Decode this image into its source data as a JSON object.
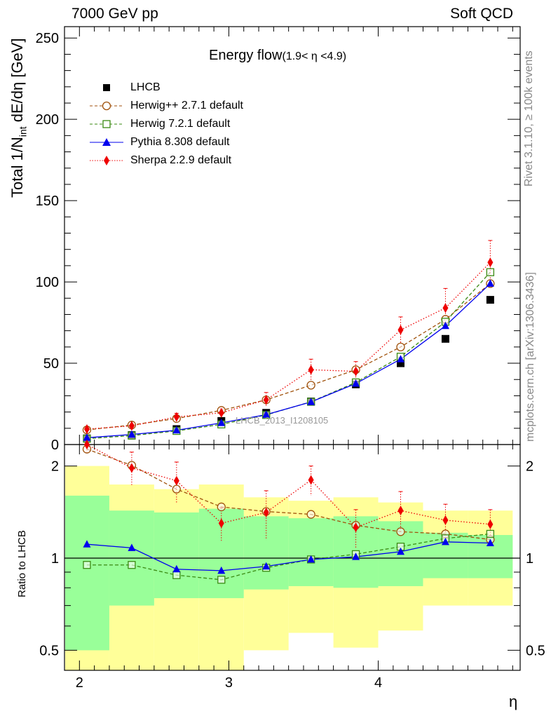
{
  "header": {
    "left": "7000 GeV pp",
    "right": "Soft QCD"
  },
  "side_text": {
    "rivet": "Rivet 3.1.10, ≥ 100k events",
    "mcplots": "mcplots.cern.ch [arXiv:1306.3436]"
  },
  "analysis_id": "LHCB_2013_I1208105",
  "colors": {
    "lhcb": "#000000",
    "herwigpp": "#a0520c",
    "herwig7": "#3a8a12",
    "pythia": "#0000ee",
    "sherpa": "#ee0000",
    "band_inner": "#99ff99",
    "band_outer": "#ffff99"
  },
  "chart_data": [
    {
      "type": "scatter",
      "title": "Energy flow",
      "title_suffix": "(1.9< η <4.9)",
      "ylabel": "Total 1/N_int dE/dη [GeV]",
      "xlabel": "η",
      "xlim": [
        1.9,
        4.95
      ],
      "ylim": [
        0,
        257
      ],
      "yticks": [
        0,
        50,
        100,
        150,
        200,
        250
      ],
      "xticks": [
        2,
        3,
        4
      ],
      "legend_position": "top-left",
      "x": [
        2.05,
        2.35,
        2.65,
        2.95,
        3.25,
        3.55,
        3.85,
        4.15,
        4.45,
        4.75
      ],
      "series": [
        {
          "name": "LHCB",
          "key": "lhcb",
          "values": [
            3.8,
            5.8,
            9.5,
            14.5,
            19.5,
            26.5,
            37,
            50,
            65,
            89
          ]
        },
        {
          "name": "Herwig++ 2.7.1 default",
          "key": "herwigpp",
          "values": [
            9,
            12,
            16,
            21,
            27.5,
            36.5,
            46,
            60,
            77,
            99
          ]
        },
        {
          "name": "Herwig 7.2.1 default",
          "key": "herwig7",
          "values": [
            3.6,
            5.5,
            8.4,
            12.4,
            18.2,
            26.3,
            38.2,
            54,
            75.5,
            106
          ]
        },
        {
          "name": "Pythia 8.308 default",
          "key": "pythia",
          "values": [
            4.2,
            6.2,
            8.8,
            13.3,
            18.4,
            26.2,
            37.5,
            52.5,
            73,
            99
          ]
        },
        {
          "name": "Sherpa 2.2.9 default",
          "key": "sherpa",
          "values": [
            9.5,
            11.5,
            17,
            19.5,
            27.5,
            46,
            45,
            70.5,
            84,
            112
          ],
          "errors": [
            0.6,
            1.2,
            2.2,
            2.5,
            4.5,
            6.5,
            6.0,
            8.0,
            12.0,
            13.5
          ]
        }
      ]
    },
    {
      "type": "scatter",
      "ylabel": "Ratio to LHCB",
      "xlabel": "η",
      "log_scale_y": true,
      "ylim": [
        0.43,
        2.35
      ],
      "yticks": [
        0.5,
        1,
        2
      ],
      "reference": 1,
      "bin_edges": [
        1.9,
        2.2,
        2.5,
        2.8,
        3.1,
        3.4,
        3.7,
        4.0,
        4.3,
        4.6,
        4.9
      ],
      "band_inner": [
        [
          0.5,
          1.6
        ],
        [
          0.7,
          1.43
        ],
        [
          0.74,
          1.41
        ],
        [
          0.74,
          1.45
        ],
        [
          0.79,
          1.37
        ],
        [
          0.81,
          1.35
        ],
        [
          0.8,
          1.37
        ],
        [
          0.81,
          1.32
        ],
        [
          0.86,
          1.21
        ],
        [
          0.86,
          1.19
        ]
      ],
      "band_outer": [
        [
          0.4,
          2.0
        ],
        [
          0.4,
          1.74
        ],
        [
          0.4,
          1.68
        ],
        [
          0.4,
          1.74
        ],
        [
          0.5,
          1.58
        ],
        [
          0.57,
          1.54
        ],
        [
          0.51,
          1.58
        ],
        [
          0.58,
          1.52
        ],
        [
          0.7,
          1.43
        ],
        [
          0.7,
          1.43
        ]
      ],
      "x": [
        2.05,
        2.35,
        2.65,
        2.95,
        3.25,
        3.55,
        3.85,
        4.15,
        4.45,
        4.75
      ],
      "series": [
        {
          "name": "Herwig++ 2.7.1 default",
          "key": "herwigpp",
          "values": [
            2.27,
            2.01,
            1.68,
            1.47,
            1.42,
            1.39,
            1.28,
            1.22,
            1.2,
            1.15
          ]
        },
        {
          "name": "Herwig 7.2.1 default",
          "key": "herwig7",
          "values": [
            0.95,
            0.95,
            0.88,
            0.85,
            0.93,
            0.99,
            1.03,
            1.09,
            1.16,
            1.2
          ]
        },
        {
          "name": "Pythia 8.308 default",
          "key": "pythia",
          "values": [
            1.11,
            1.08,
            0.92,
            0.91,
            0.94,
            0.99,
            1.01,
            1.05,
            1.13,
            1.12
          ]
        },
        {
          "name": "Sherpa 2.2.9 default",
          "key": "sherpa",
          "values": [
            2.35,
            1.97,
            1.79,
            1.3,
            1.41,
            1.8,
            1.26,
            1.43,
            1.33,
            1.29
          ],
          "errors": [
            0.15,
            0.25,
            0.27,
            0.16,
            0.25,
            0.2,
            0.18,
            0.22,
            0.17,
            0.15
          ]
        }
      ]
    }
  ]
}
